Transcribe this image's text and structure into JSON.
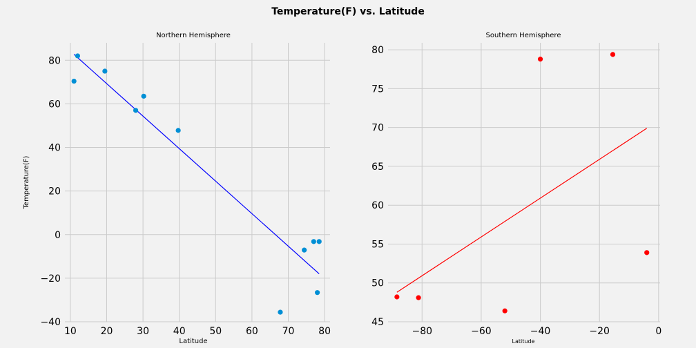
{
  "figure": {
    "title": "Temperature(F) vs. Latitude"
  },
  "chart_data": [
    {
      "type": "scatter",
      "title": "Northern Hemisphere",
      "xlabel": "Latitude",
      "ylabel": "Temperature(F)",
      "xlim": [
        8.5,
        81.5
      ],
      "ylim": [
        -40,
        88
      ],
      "xticks": [
        10,
        20,
        30,
        40,
        50,
        60,
        70,
        80
      ],
      "yticks": [
        -40,
        -20,
        0,
        20,
        40,
        60,
        80
      ],
      "xtick_labels": [
        "10",
        "20",
        "30",
        "40",
        "50",
        "60",
        "70",
        "80"
      ],
      "ytick_labels": [
        "−40",
        "−20",
        "0",
        "20",
        "40",
        "60",
        "80"
      ],
      "grid": true,
      "point_color": "#008fd5",
      "line_color": "#0000ff",
      "x": [
        11.0,
        12.0,
        19.5,
        28.0,
        30.2,
        39.7,
        67.8,
        74.4,
        77.0,
        78.0,
        78.5
      ],
      "y": [
        70.4,
        82.0,
        75.0,
        57.0,
        63.5,
        47.8,
        -35.6,
        -7.1,
        -3.2,
        -26.6,
        -3.2
      ],
      "regression": {
        "x": [
          11.0,
          78.5
        ],
        "y": [
          82.7,
          -18.0
        ]
      }
    },
    {
      "type": "scatter",
      "title": "Southern Hemisphere",
      "xlabel": "Latitude",
      "ylabel": "",
      "xlim": [
        -91.5,
        0.5
      ],
      "ylim": [
        45,
        80.9
      ],
      "xticks": [
        -80,
        -60,
        -40,
        -20,
        0
      ],
      "yticks": [
        45,
        50,
        55,
        60,
        65,
        70,
        75,
        80
      ],
      "xtick_labels": [
        "−80",
        "−60",
        "−40",
        "−20",
        "0"
      ],
      "ytick_labels": [
        "45",
        "50",
        "55",
        "60",
        "65",
        "70",
        "75",
        "80"
      ],
      "grid": true,
      "point_color": "#ff0000",
      "line_color": "#ff0000",
      "x": [
        -88.5,
        -81.2,
        -52.0,
        -40.0,
        -15.5,
        -4.0
      ],
      "y": [
        48.2,
        48.1,
        46.4,
        78.8,
        79.4,
        53.9
      ],
      "regression": {
        "x": [
          -88.5,
          -4.0
        ],
        "y": [
          48.8,
          69.9
        ]
      }
    }
  ]
}
